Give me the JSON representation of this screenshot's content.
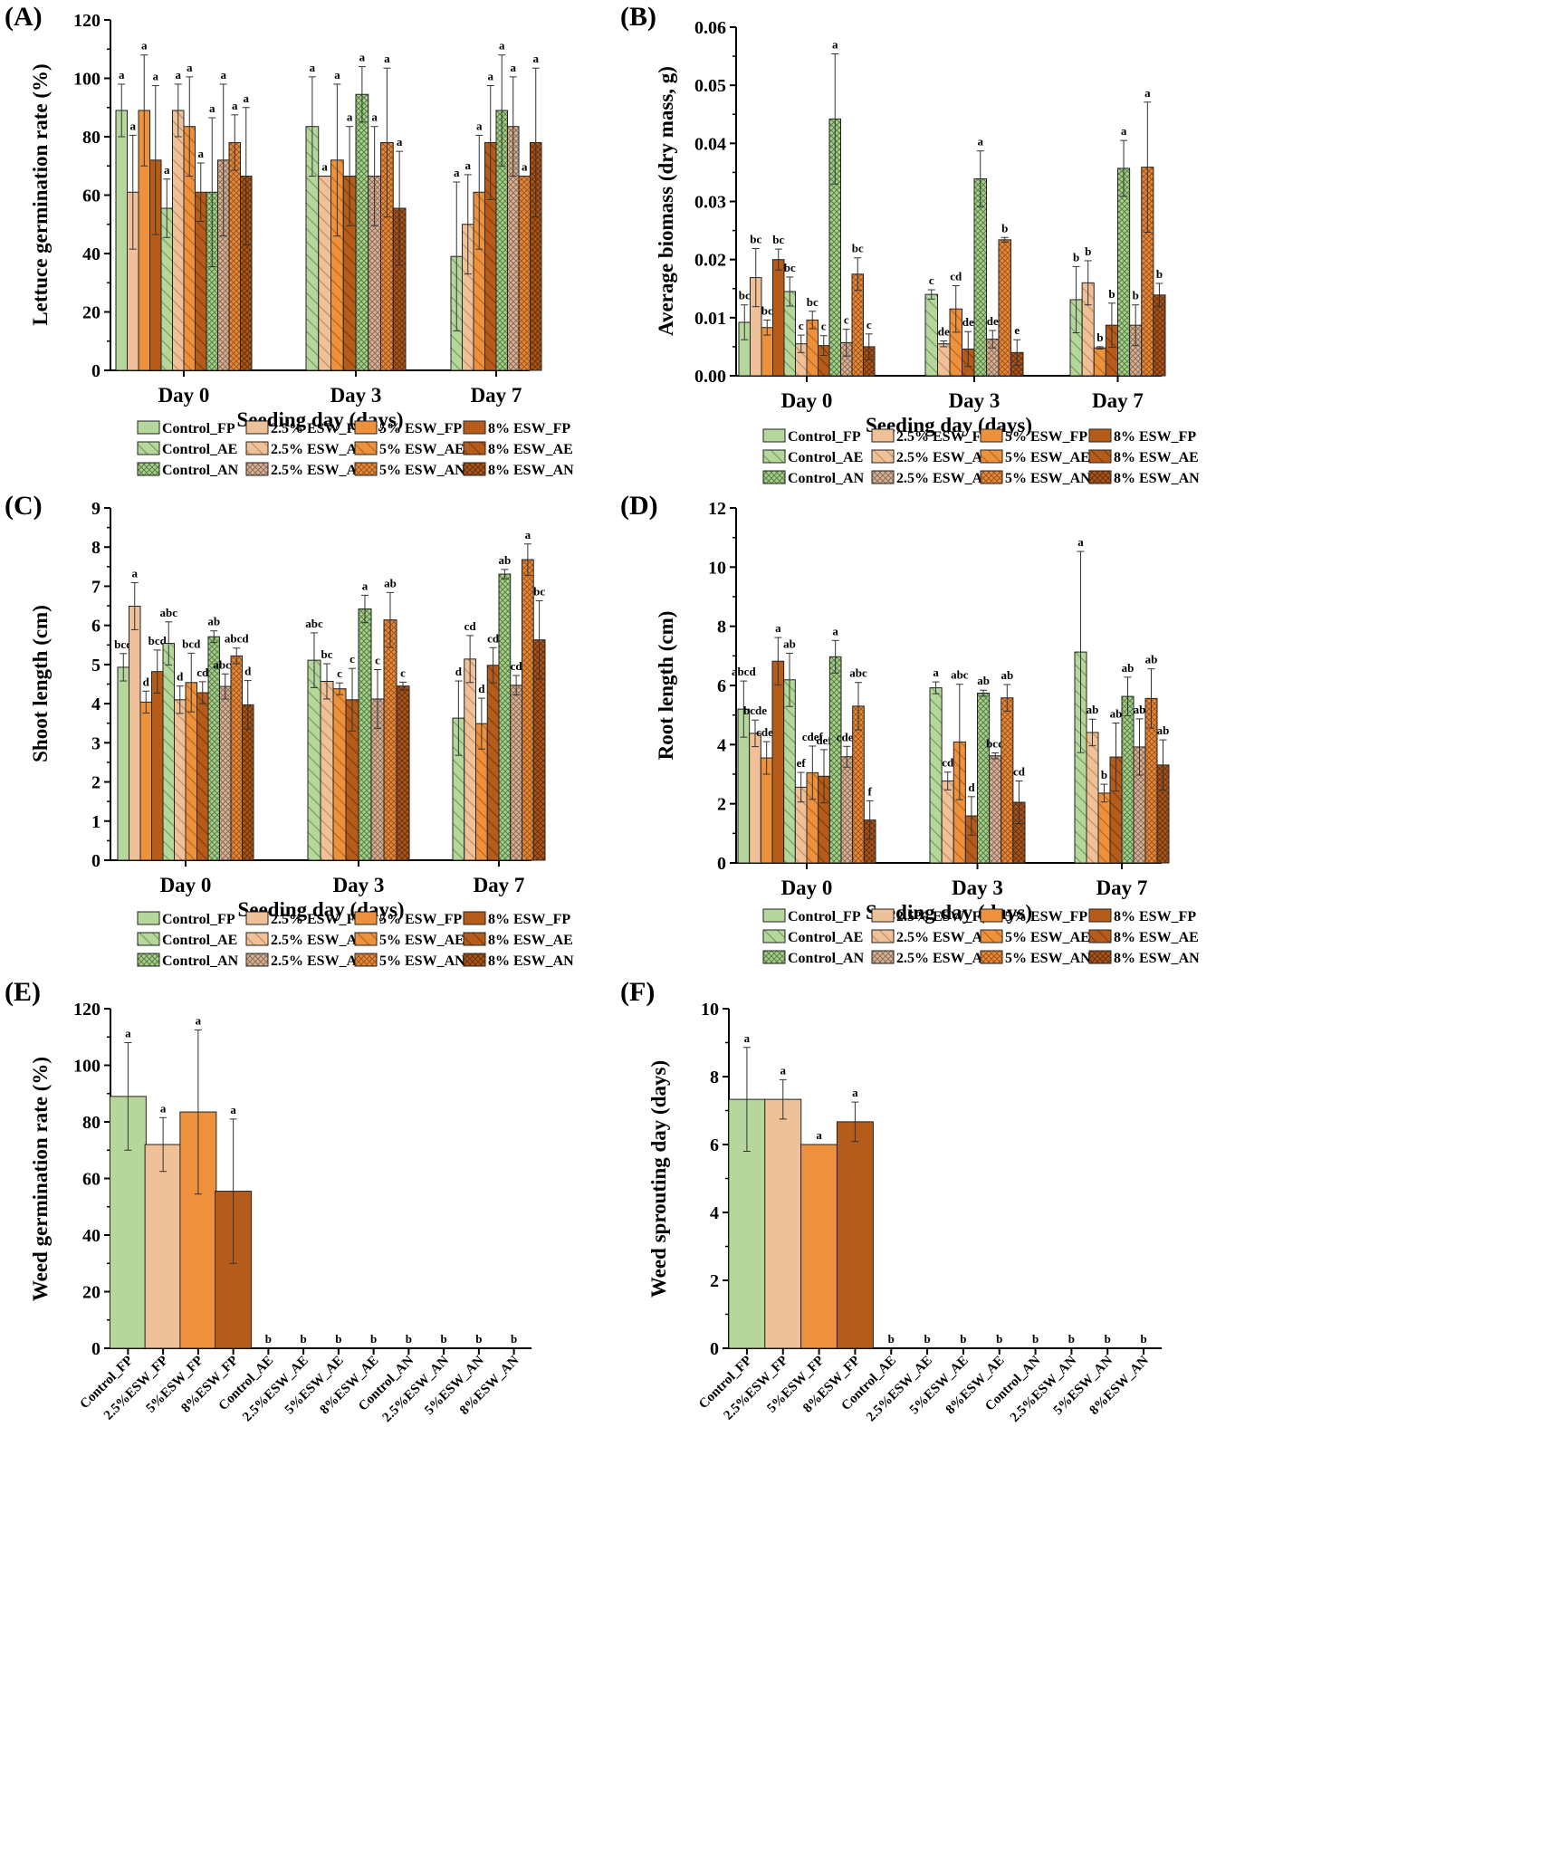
{
  "colors": {
    "control": "#b6d79c",
    "esw25": "#eec199",
    "esw5": "#ed913d",
    "esw8": "#b55c1b",
    "control_dark": "#8bb577",
    "esw25_dark": "#cc9a73",
    "esw5_dark": "#c86f22",
    "esw8_dark": "#8a4210"
  },
  "legend_labels": [
    "Control_FP",
    "2.5% ESW_FP",
    "5% ESW_FP",
    "8% ESW_FP",
    "Control_AE",
    "2.5% ESW_AE",
    "5% ESW_AE",
    "8% ESW_AE",
    "Control_AN",
    "2.5% ESW_AN",
    "5% ESW_AN",
    "8% ESW_AN"
  ],
  "chart_data": [
    {
      "id": "A",
      "panel": "(A)",
      "type": "bar",
      "ylabel": "Lettuce germination rate (%)",
      "xlabel": "Seeding day (days)",
      "ylim": [
        0,
        120
      ],
      "yticks": [
        "0",
        "20",
        "40",
        "60",
        "80",
        "100",
        "120"
      ],
      "categories": [
        "Day 0",
        "Day 3",
        "Day 7"
      ],
      "series_names": [
        "Control_FP",
        "2.5% ESW_FP",
        "5% ESW_FP",
        "8% ESW_FP",
        "Control_AE",
        "2.5% ESW_AE",
        "5% ESW_AE",
        "8% ESW_AE",
        "Control_AN",
        "2.5% ESW_AN",
        "5% ESW_AN",
        "8% ESW_AN"
      ],
      "groups": [
        {
          "values": [
            89,
            61,
            89,
            72,
            55.5,
            89,
            83.5,
            61,
            61,
            72,
            78,
            66.5
          ],
          "errors": [
            9,
            19.5,
            19,
            25.5,
            10,
            9,
            17,
            10,
            25.5,
            26,
            9.5,
            23.5
          ],
          "letters": [
            "a",
            "a",
            "a",
            "a",
            "a",
            "a",
            "a",
            "a",
            "a",
            "a",
            "a",
            "a"
          ]
        },
        {
          "values": [
            null,
            null,
            null,
            null,
            83.5,
            66.5,
            72,
            66.5,
            94.5,
            66.5,
            78,
            55.5
          ],
          "errors": [
            null,
            null,
            null,
            null,
            17,
            0,
            26,
            17,
            9.5,
            17,
            25.5,
            19.5
          ],
          "letters": [
            "",
            "",
            "",
            "",
            "a",
            "a",
            "a",
            "a",
            "a",
            "a",
            "a",
            "a"
          ]
        },
        {
          "values": [
            null,
            null,
            null,
            null,
            39,
            50,
            61,
            78,
            89,
            83.5,
            66.5,
            78
          ],
          "errors": [
            null,
            null,
            null,
            null,
            25.5,
            17,
            19.5,
            19.5,
            19,
            17,
            0,
            25.5
          ],
          "letters": [
            "",
            "",
            "",
            "",
            "a",
            "a",
            "a",
            "a",
            "a",
            "a",
            "a",
            "a"
          ]
        }
      ]
    },
    {
      "id": "B",
      "panel": "(B)",
      "type": "bar",
      "ylabel": "Average biomass (dry mass, g)",
      "xlabel": "Seeding day (days)",
      "ylim": [
        0,
        0.06
      ],
      "yticks": [
        "0.00",
        "0.01",
        "0.02",
        "0.03",
        "0.04",
        "0.05",
        "0.06"
      ],
      "categories": [
        "Day 0",
        "Day 3",
        "Day 7"
      ],
      "series_names": [
        "Control_FP",
        "2.5% ESW_FP",
        "5% ESW_FP",
        "8% ESW_FP",
        "Control_AE",
        "2.5% ESW_AE",
        "5% ESW_AE",
        "8% ESW_AE",
        "Control_AN",
        "2.5% ESW_AN",
        "5% ESW_AN",
        "8% ESW_AN"
      ],
      "groups": [
        {
          "values": [
            0.0092,
            0.0169,
            0.0083,
            0.02,
            0.0145,
            0.0055,
            0.0096,
            0.0052,
            0.0442,
            0.0057,
            0.0175,
            0.005
          ],
          "errors": [
            0.003,
            0.005,
            0.0013,
            0.0018,
            0.0025,
            0.0015,
            0.0015,
            0.0017,
            0.0112,
            0.0023,
            0.0028,
            0.0022
          ],
          "letters": [
            "bc",
            "bc",
            "bc",
            "bc",
            "bc",
            "c",
            "bc",
            "c",
            "a",
            "c",
            "bc",
            "c"
          ]
        },
        {
          "values": [
            null,
            null,
            null,
            null,
            0.014,
            0.0055,
            0.0115,
            0.0046,
            0.0339,
            0.0063,
            0.0234,
            0.004
          ],
          "errors": [
            null,
            null,
            null,
            null,
            0.0008,
            0.0005,
            0.004,
            0.003,
            0.0048,
            0.0015,
            0.0004,
            0.0022
          ],
          "letters": [
            "",
            "",
            "",
            "",
            "c",
            "de",
            "cd",
            "de",
            "a",
            "de",
            "b",
            "e"
          ]
        },
        {
          "values": [
            null,
            null,
            null,
            null,
            0.0131,
            0.016,
            0.0048,
            0.0087,
            0.0357,
            0.0087,
            0.0359,
            0.0139
          ],
          "errors": [
            null,
            null,
            null,
            null,
            0.0057,
            0.0038,
            0.0002,
            0.0038,
            0.0048,
            0.0035,
            0.0112,
            0.002
          ],
          "letters": [
            "",
            "",
            "",
            "",
            "b",
            "b",
            "b",
            "b",
            "a",
            "b",
            "a",
            "b"
          ]
        }
      ]
    },
    {
      "id": "C",
      "panel": "(C)",
      "type": "bar",
      "ylabel": "Shoot length (cm)",
      "xlabel": "Seeding day (days)",
      "ylim": [
        0,
        9
      ],
      "yticks": [
        "0",
        "1",
        "2",
        "3",
        "4",
        "5",
        "6",
        "7",
        "8",
        "9"
      ],
      "categories": [
        "Day 0",
        "Day 3",
        "Day 7"
      ],
      "series_names": [
        "Control_FP",
        "2.5% ESW_FP",
        "5% ESW_FP",
        "8% ESW_FP",
        "Control_AE",
        "2.5% ESW_AE",
        "5% ESW_AE",
        "8% ESW_AE",
        "Control_AN",
        "2.5% ESW_AN",
        "5% ESW_AN",
        "8% ESW_AN"
      ],
      "groups": [
        {
          "values": [
            4.93,
            6.49,
            4.04,
            4.82,
            5.54,
            4.1,
            4.54,
            4.28,
            5.71,
            4.44,
            5.22,
            3.97
          ],
          "errors": [
            0.35,
            0.6,
            0.28,
            0.55,
            0.55,
            0.35,
            0.75,
            0.28,
            0.15,
            0.32,
            0.2,
            0.62
          ],
          "letters": [
            "bcd",
            "a",
            "d",
            "bcd",
            "abc",
            "d",
            "bcd",
            "cd",
            "ab",
            "abcd",
            "abcd",
            "d"
          ]
        },
        {
          "values": [
            null,
            null,
            null,
            null,
            5.11,
            4.57,
            4.38,
            4.1,
            6.42,
            4.12,
            6.14,
            4.45
          ],
          "errors": [
            null,
            null,
            null,
            null,
            0.7,
            0.45,
            0.15,
            0.8,
            0.35,
            0.75,
            0.7,
            0.1
          ],
          "letters": [
            "",
            "",
            "",
            "",
            "abc",
            "bc",
            "c",
            "c",
            "a",
            "c",
            "ab",
            "c"
          ]
        },
        {
          "values": [
            null,
            null,
            null,
            null,
            3.63,
            5.14,
            3.49,
            4.98,
            7.31,
            4.47,
            7.68,
            5.63
          ],
          "errors": [
            null,
            null,
            null,
            null,
            0.95,
            0.6,
            0.65,
            0.45,
            0.12,
            0.25,
            0.4,
            1.0
          ],
          "letters": [
            "",
            "",
            "",
            "",
            "d",
            "cd",
            "d",
            "cd",
            "ab",
            "cd",
            "a",
            "bc"
          ]
        }
      ]
    },
    {
      "id": "D",
      "panel": "(D)",
      "type": "bar",
      "ylabel": "Root length (cm)",
      "xlabel": "Seeding day (days)",
      "ylim": [
        0,
        12
      ],
      "yticks": [
        "0",
        "2",
        "4",
        "6",
        "8",
        "10",
        "12"
      ],
      "categories": [
        "Day 0",
        "Day 3",
        "Day 7"
      ],
      "series_names": [
        "Control_FP",
        "2.5% ESW_FP",
        "5% ESW_FP",
        "8% ESW_FP",
        "Control_AE",
        "2.5% ESW_AE",
        "5% ESW_AE",
        "8% ESW_AE",
        "Control_AN",
        "2.5% ESW_AN",
        "5% ESW_AN",
        "8% ESW_AN"
      ],
      "groups": [
        {
          "values": [
            5.2,
            4.38,
            3.55,
            6.82,
            6.19,
            2.56,
            3.05,
            2.93,
            6.97,
            3.59,
            5.3,
            1.45
          ],
          "errors": [
            0.95,
            0.45,
            0.55,
            0.8,
            0.9,
            0.5,
            0.9,
            0.9,
            0.55,
            0.35,
            0.8,
            0.65
          ],
          "letters": [
            "abcd",
            "bcde",
            "cdef",
            "a",
            "ab",
            "ef",
            "cdef",
            "def",
            "a",
            "cdef",
            "abc",
            "f"
          ]
        },
        {
          "values": [
            null,
            null,
            null,
            null,
            5.92,
            2.77,
            4.09,
            1.59,
            5.74,
            3.62,
            5.58,
            2.05
          ],
          "errors": [
            null,
            null,
            null,
            null,
            0.2,
            0.3,
            1.95,
            0.65,
            0.1,
            0.1,
            0.45,
            0.72
          ],
          "letters": [
            "",
            "",
            "",
            "",
            "a",
            "cd",
            "abc",
            "d",
            "ab",
            "bcd",
            "ab",
            "cd"
          ]
        },
        {
          "values": [
            null,
            null,
            null,
            null,
            7.13,
            4.41,
            2.36,
            3.58,
            5.63,
            3.92,
            5.56,
            3.31
          ],
          "errors": [
            null,
            null,
            null,
            null,
            3.4,
            0.45,
            0.3,
            1.15,
            0.65,
            0.95,
            1.0,
            0.85
          ],
          "letters": [
            "",
            "",
            "",
            "",
            "a",
            "ab",
            "b",
            "ab",
            "ab",
            "ab",
            "ab",
            "ab"
          ]
        }
      ]
    },
    {
      "id": "E",
      "panel": "(E)",
      "type": "bar",
      "ylabel": "Weed germination rate (%)",
      "xlabel": "",
      "ylim": [
        0,
        120
      ],
      "yticks": [
        "0",
        "20",
        "40",
        "60",
        "80",
        "100",
        "120"
      ],
      "categories": [
        "Control_FP",
        "2.5%ESW_FP",
        "5%ESW_FP",
        "8%ESW_FP",
        "Control_AE",
        "2.5%ESW_AE",
        "5%ESW_AE",
        "8%ESW_AE",
        "Control_AN",
        "2.5%ESW_AN",
        "5%ESW_AN",
        "8%ESW_AN"
      ],
      "values": [
        89,
        72,
        83.5,
        55.5,
        0,
        0,
        0,
        0,
        0,
        0,
        0,
        0
      ],
      "errors": [
        19,
        9.5,
        29,
        25.5,
        0,
        0,
        0,
        0,
        0,
        0,
        0,
        0
      ],
      "letters": [
        "a",
        "a",
        "a",
        "a",
        "b",
        "b",
        "b",
        "b",
        "b",
        "b",
        "b",
        "b"
      ]
    },
    {
      "id": "F",
      "panel": "(F)",
      "type": "bar",
      "ylabel": "Weed sprouting day (days)",
      "xlabel": "",
      "ylim": [
        0,
        10
      ],
      "yticks": [
        "0",
        "2",
        "4",
        "6",
        "8",
        "10"
      ],
      "categories": [
        "Control_FP",
        "2.5%ESW_FP",
        "5%ESW_FP",
        "8%ESW_FP",
        "Control_AE",
        "2.5%ESW_AE",
        "5%ESW_AE",
        "8%ESW_AE",
        "Control_AN",
        "2.5%ESW_AN",
        "5%ESW_AN",
        "8%ESW_AN"
      ],
      "values": [
        7.33,
        7.33,
        6.0,
        6.67,
        0,
        0,
        0,
        0,
        0,
        0,
        0,
        0
      ],
      "errors": [
        1.53,
        0.58,
        0,
        0.58,
        0,
        0,
        0,
        0,
        0,
        0,
        0,
        0
      ],
      "letters": [
        "a",
        "a",
        "a",
        "a",
        "b",
        "b",
        "b",
        "b",
        "b",
        "b",
        "b",
        "b"
      ]
    }
  ]
}
